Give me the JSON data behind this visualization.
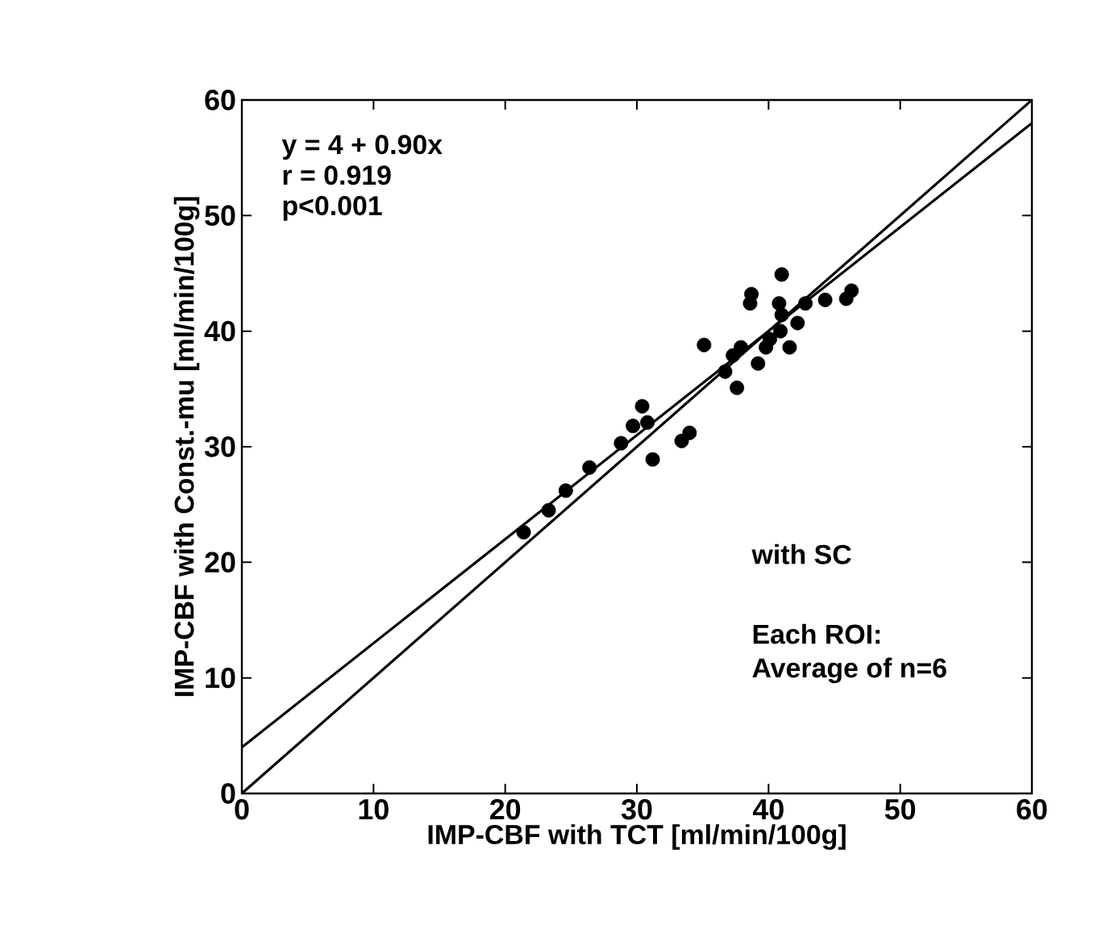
{
  "chart_data": {
    "type": "scatter",
    "xlabel": "IMP-CBF with TCT [ml/min/100g]",
    "ylabel": "IMP-CBF with Const.-mu [ml/min/100g]",
    "xlim": [
      0,
      60
    ],
    "ylim": [
      0,
      60
    ],
    "xticks": [
      0,
      10,
      20,
      30,
      40,
      50,
      60
    ],
    "yticks": [
      0,
      10,
      20,
      30,
      40,
      50,
      60
    ],
    "grid": false,
    "legend": false,
    "annotations": [
      "y = 4 + 0.90x",
      "r = 0.919",
      "p<0.001",
      "with SC",
      "Each ROI:",
      "Average of n=6"
    ],
    "series": [
      {
        "marker": "circle",
        "color": "#000000",
        "x": [
          21.4,
          23.3,
          24.6,
          26.4,
          28.8,
          29.7,
          30.4,
          30.8,
          31.2,
          33.4,
          34.0,
          35.1,
          36.7,
          37.3,
          37.9,
          37.6,
          39.2,
          38.6,
          38.7,
          40.1,
          40.9,
          41.0,
          41.0,
          41.6,
          42.2,
          42.8,
          44.3,
          45.9,
          46.3,
          40.8,
          39.8
        ],
        "values": [
          22.6,
          24.5,
          26.2,
          28.2,
          30.3,
          31.8,
          33.5,
          32.1,
          28.9,
          30.5,
          31.2,
          38.8,
          36.5,
          37.9,
          38.6,
          35.1,
          37.2,
          42.4,
          43.2,
          39.3,
          40.0,
          41.4,
          44.9,
          38.6,
          40.7,
          42.4,
          42.7,
          42.8,
          43.5,
          42.4,
          38.6
        ]
      },
      {
        "type": "line",
        "color": "#000000",
        "line_style": "solid",
        "marker": "none",
        "x": [
          0,
          60
        ],
        "values": [
          0,
          60
        ]
      },
      {
        "type": "line",
        "color": "#000000",
        "line_style": "solid",
        "marker": "none",
        "x": [
          0,
          60
        ],
        "values": [
          4,
          58
        ]
      }
    ]
  }
}
